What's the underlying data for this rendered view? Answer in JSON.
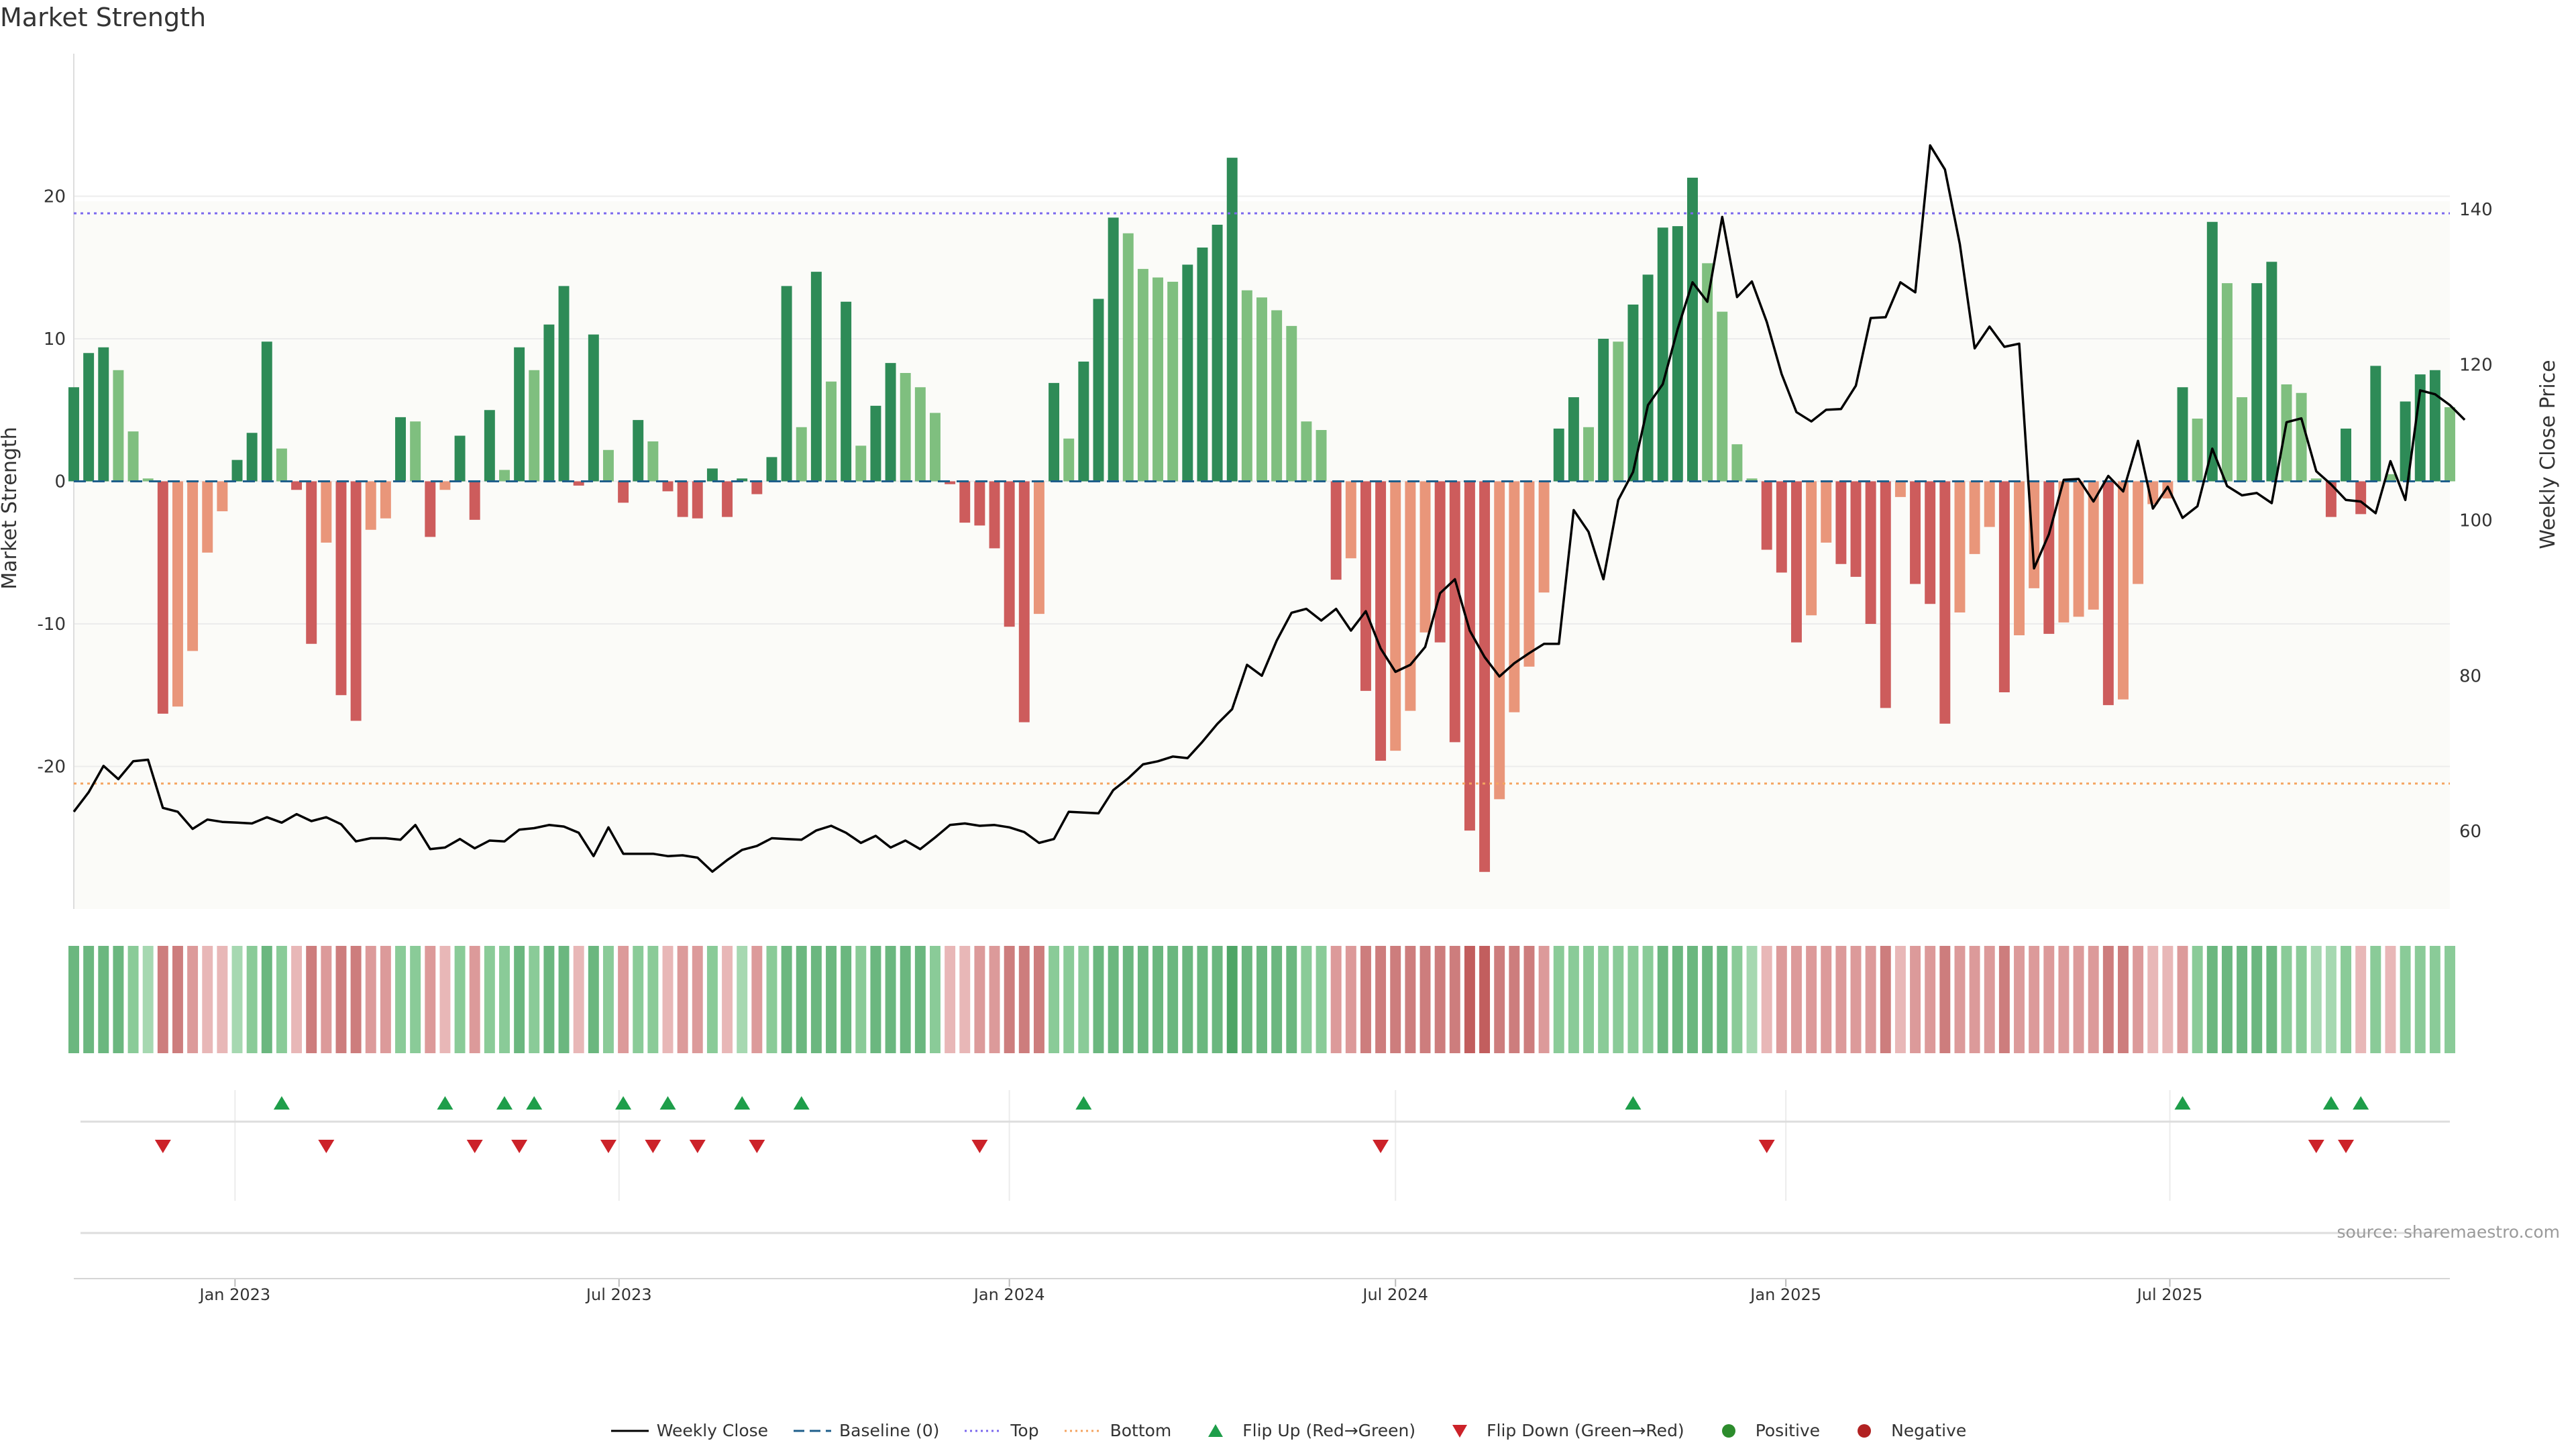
{
  "title": "Market Strength",
  "source": "source: sharemaestro.com",
  "colors": {
    "strong_green": "#2e8b57",
    "light_green": "#7fbf7f",
    "strong_red": "#cd5c5c",
    "light_red": "#e9967a",
    "price_line": "#000000",
    "baseline": "#1f5f8b",
    "top_line": "#7b68ee",
    "bottom_line": "#f4a460",
    "flip_up": "#1e9e4a",
    "flip_down": "#cc2229",
    "positive": "#2c8c2c",
    "negative": "#b22222"
  },
  "legend": [
    {
      "label": "Weekly Close",
      "icon": "solid-line"
    },
    {
      "label": "Baseline (0)",
      "icon": "dashed-line"
    },
    {
      "label": "Top",
      "icon": "dotted-line"
    },
    {
      "label": "Bottom",
      "icon": "dotted-line"
    },
    {
      "label": "Flip Up (Red→Green)",
      "icon": "triangle-up"
    },
    {
      "label": "Flip Down (Green→Red)",
      "icon": "triangle-down"
    },
    {
      "label": "Positive",
      "icon": "circle"
    },
    {
      "label": "Negative",
      "icon": "circle"
    }
  ],
  "chart_data": {
    "type": "bar",
    "title": "Market Strength",
    "ylabel": "Market Strength",
    "y2label": "Weekly Close Price",
    "ylim": [
      -30,
      30
    ],
    "y2lim": [
      50,
      160
    ],
    "yticks": [
      -20,
      -10,
      0,
      10,
      20
    ],
    "y2ticks": [
      60,
      80,
      100,
      120,
      140
    ],
    "x_range": [
      "2022-10-17",
      "2025-11-10"
    ],
    "x_ticks": [
      {
        "date": "2023-01-01",
        "label": "Jan 2023"
      },
      {
        "date": "2023-07-01",
        "label": "Jul 2023"
      },
      {
        "date": "2024-01-01",
        "label": "Jan 2024"
      },
      {
        "date": "2024-07-01",
        "label": "Jul 2024"
      },
      {
        "date": "2025-01-01",
        "label": "Jan 2025"
      },
      {
        "date": "2025-07-01",
        "label": "Jul 2025"
      }
    ],
    "reference_lines": {
      "top": 18.8,
      "bottom": -21.2,
      "baseline": 0
    },
    "start_week": "2022-10-17",
    "strength": [
      6.6,
      9,
      9.4,
      7.8,
      3.5,
      0.2,
      -16.3,
      -15.8,
      -11.9,
      -5,
      -2.1,
      1.5,
      3.4,
      9.8,
      2.3,
      -0.6,
      -11.4,
      -4.3,
      -15,
      -16.8,
      -3.4,
      -2.6,
      4.5,
      4.2,
      -3.9,
      -0.6,
      3.2,
      -2.7,
      5,
      0.8,
      9.4,
      7.8,
      11,
      13.7,
      -0.3,
      10.3,
      2.2,
      -1.5,
      4.3,
      2.8,
      -0.7,
      -2.5,
      -2.6,
      0.9,
      -2.5,
      0.2,
      -0.9,
      1.7,
      13.7,
      3.8,
      14.7,
      7,
      12.6,
      2.5,
      5.3,
      8.3,
      7.6,
      6.6,
      4.8,
      -0.2,
      -2.9,
      -3.1,
      -4.7,
      -10.2,
      -16.9,
      -9.3,
      6.9,
      3,
      8.4,
      12.8,
      18.5,
      17.4,
      14.9,
      14.3,
      14,
      15.2,
      16.4,
      18,
      22.7,
      13.4,
      12.9,
      12,
      10.9,
      4.2,
      3.6,
      -6.9,
      -5.4,
      -14.7,
      -19.6,
      -18.9,
      -16.1,
      -10.6,
      -11.3,
      -18.3,
      -24.5,
      -27.4,
      -22.3,
      -16.2,
      -13,
      -7.8,
      3.7,
      5.9,
      3.8,
      10,
      9.8,
      12.4,
      14.5,
      17.8,
      17.9,
      21.3,
      15.3,
      11.9,
      2.6,
      0.2,
      -4.8,
      -6.4,
      -11.3,
      -9.4,
      -4.3,
      -5.8,
      -6.7,
      -10,
      -15.9,
      -1.1,
      -7.2,
      -8.6,
      -17,
      -9.2,
      -5.1,
      -3.2,
      -14.8,
      -10.8,
      -7.5,
      -10.7,
      -9.9,
      -9.5,
      -9,
      -15.7,
      -15.3,
      -7.2,
      -1.6,
      -1.2,
      6.6,
      4.4,
      18.2,
      13.9,
      5.9,
      13.9,
      15.4,
      6.8,
      6.2,
      0.2,
      -2.5,
      3.7,
      -2.3,
      8.1,
      0.5,
      5.6,
      7.5,
      7.8,
      5.2
    ],
    "weekly_close": [
      62.5,
      65,
      68.4,
      66.7,
      69,
      69.2,
      63,
      62.5,
      60.3,
      61.5,
      61.2,
      61.1,
      61,
      61.8,
      61.1,
      62.2,
      61.3,
      61.8,
      60.9,
      58.7,
      59.1,
      59.1,
      58.9,
      60.8,
      57.7,
      57.9,
      59,
      57.8,
      58.8,
      58.7,
      60.2,
      60.4,
      60.8,
      60.6,
      59.8,
      56.8,
      60.5,
      57.1,
      57.1,
      57.1,
      56.8,
      56.9,
      56.6,
      54.8,
      56.3,
      57.6,
      58.1,
      59.1,
      59,
      58.9,
      60.1,
      60.7,
      59.8,
      58.5,
      59.4,
      57.9,
      58.8,
      57.7,
      59.2,
      60.8,
      61,
      60.7,
      60.8,
      60.5,
      59.9,
      58.5,
      59,
      62.5,
      62.4,
      62.3,
      65.3,
      66.8,
      68.6,
      69,
      69.6,
      69.4,
      71.5,
      73.8,
      75.7,
      81.4,
      80,
      84.5,
      88.1,
      88.6,
      87.1,
      88.6,
      85.8,
      88.3,
      83.5,
      80.5,
      81.4,
      83.7,
      90.6,
      92.4,
      85.8,
      82.4,
      79.9,
      81.6,
      82.9,
      84.1,
      84.1,
      101.3,
      98.5,
      92.4,
      102.6,
      106.2,
      114.8,
      117.5,
      124.6,
      130.6,
      128.1,
      139,
      128.7,
      130.7,
      125.5,
      118.8,
      113.9,
      112.7,
      114.2,
      114.3,
      117.3,
      126,
      126.1,
      130.6,
      129.3,
      148.2,
      145.1,
      135.5,
      122.1,
      124.9,
      122.3,
      122.7,
      93.8,
      98.2,
      105.2,
      105.3,
      102.4,
      105.7,
      103.7,
      110.2,
      101.5,
      104.3,
      100.3,
      101.8,
      109.2,
      104.4,
      103.2,
      103.5,
      102.2,
      112.6,
      113.1,
      106.3,
      104.6,
      102.6,
      102.4,
      100.9,
      107.6,
      102.6,
      116.7,
      116.2,
      114.8,
      112.9
    ]
  },
  "heat_strip": {
    "strength_levels": [
      3,
      3,
      3,
      3,
      2,
      1,
      3,
      3,
      2,
      1,
      1,
      1,
      2,
      3,
      2,
      1,
      3,
      2,
      3,
      3,
      2,
      2,
      2,
      2,
      2,
      1,
      2,
      2,
      2,
      2,
      3,
      2,
      3,
      3,
      1,
      3,
      2,
      2,
      2,
      2,
      1,
      2,
      2,
      2,
      1,
      1,
      2,
      2,
      3,
      3,
      3,
      3,
      3,
      2,
      3,
      3,
      3,
      3,
      2,
      1,
      1,
      2,
      2,
      3,
      3,
      3,
      2,
      2,
      2,
      3,
      3,
      3,
      3,
      3,
      3,
      3,
      3,
      3,
      4,
      3,
      3,
      3,
      3,
      2,
      2,
      2,
      2,
      3,
      3,
      3,
      3,
      3,
      3,
      3,
      4,
      4,
      3,
      3,
      3,
      2,
      2,
      2,
      2,
      2,
      2,
      2,
      2,
      3,
      3,
      3,
      3,
      3,
      2,
      1,
      1,
      2,
      2,
      2,
      2,
      2,
      2,
      2,
      3,
      1,
      2,
      2,
      3,
      2,
      2,
      2,
      3,
      2,
      2,
      2,
      2,
      2,
      2,
      3,
      3,
      2,
      1,
      1,
      2,
      2,
      3,
      3,
      3,
      3,
      3,
      2,
      2,
      1,
      1,
      2,
      1,
      2,
      1,
      2,
      2,
      2,
      2
    ],
    "signs": [
      "+",
      "+",
      "+",
      "+",
      "+",
      "+",
      "-",
      "-",
      "-",
      "-",
      "-",
      "+",
      "+",
      "+",
      "+",
      "-",
      "-",
      "-",
      "-",
      "-",
      "-",
      "-",
      "+",
      "+",
      "-",
      "-",
      "+",
      "-",
      "+",
      "+",
      "+",
      "+",
      "+",
      "+",
      "-",
      "+",
      "+",
      "-",
      "+",
      "+",
      "-",
      "-",
      "-",
      "+",
      "-",
      "+",
      "-",
      "+",
      "+",
      "+",
      "+",
      "+",
      "+",
      "+",
      "+",
      "+",
      "+",
      "+",
      "+",
      "-",
      "-",
      "-",
      "-",
      "-",
      "-",
      "-",
      "+",
      "+",
      "+",
      "+",
      "+",
      "+",
      "+",
      "+",
      "+",
      "+",
      "+",
      "+",
      "+",
      "+",
      "+",
      "+",
      "+",
      "+",
      "+",
      "-",
      "-",
      "-",
      "-",
      "-",
      "-",
      "-",
      "-",
      "-",
      "-",
      "-",
      "-",
      "-",
      "-",
      "-",
      "+",
      "+",
      "+",
      "+",
      "+",
      "+",
      "+",
      "+",
      "+",
      "+",
      "+",
      "+",
      "+",
      "+",
      "-",
      "-",
      "-",
      "-",
      "-",
      "-",
      "-",
      "-",
      "-",
      "-",
      "-",
      "-",
      "-",
      "-",
      "-",
      "-",
      "-",
      "-",
      "-",
      "-",
      "-",
      "-",
      "-",
      "-",
      "-",
      "-",
      "-",
      "-",
      "-",
      "+",
      "+",
      "+",
      "+",
      "+",
      "+",
      "+",
      "+",
      "+",
      "+",
      "+",
      "-",
      "+",
      "-",
      "+",
      "+",
      "+",
      "+",
      "+",
      "+"
    ]
  },
  "signals": {
    "flip_up": [
      "2023-01-23",
      "2023-04-10",
      "2023-05-08",
      "2023-05-22",
      "2023-07-03",
      "2023-07-24",
      "2023-08-28",
      "2023-09-25",
      "2024-02-05",
      "2024-10-21",
      "2025-07-07",
      "2025-09-15",
      "2025-09-29"
    ],
    "flip_down": [
      "2022-11-28",
      "2023-02-13",
      "2023-04-24",
      "2023-05-15",
      "2023-06-26",
      "2023-07-17",
      "2023-08-07",
      "2023-09-04",
      "2023-12-18",
      "2024-06-24",
      "2024-12-23",
      "2025-09-08",
      "2025-09-22"
    ]
  }
}
